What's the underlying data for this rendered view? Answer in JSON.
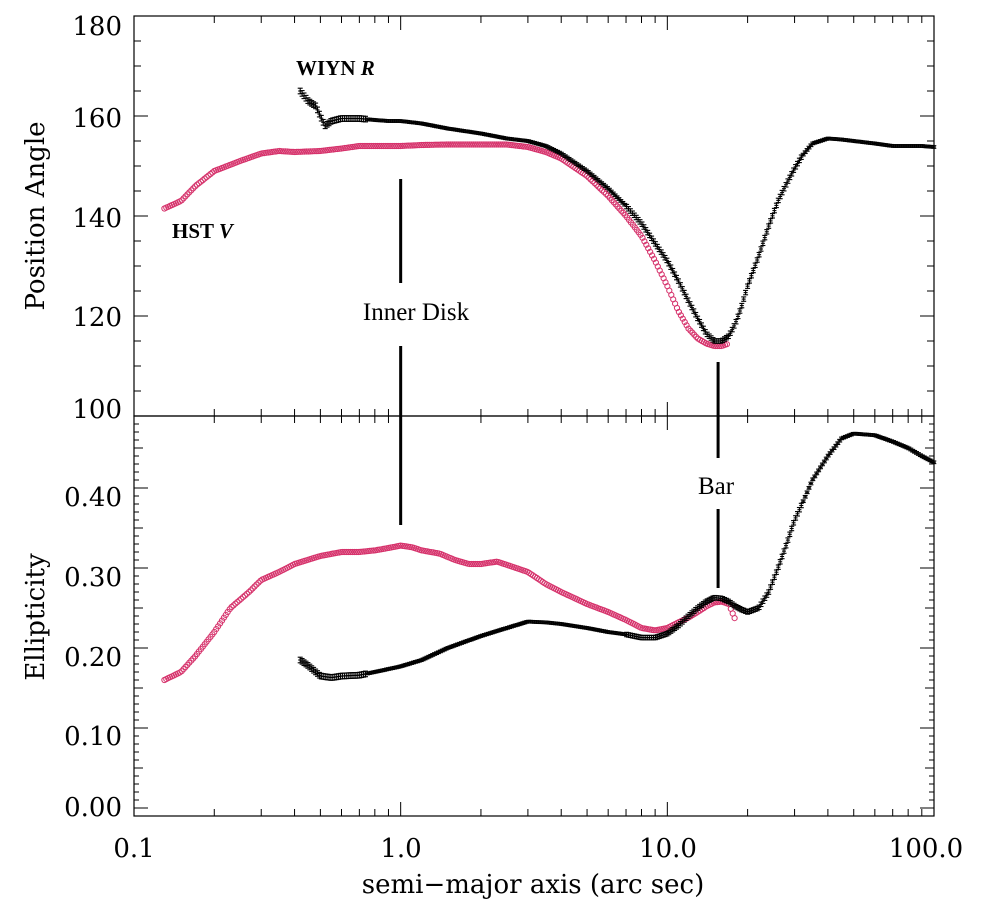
{
  "colors": {
    "hst": "#d6336c",
    "wiyn": "#000000",
    "axis": "#000000"
  },
  "chart_data": {
    "type": "scatter",
    "xlabel": "semi−major axis (arc sec)",
    "xscale": "log",
    "xlim": [
      0.1,
      100.0
    ],
    "xticks": [
      "0.1",
      "1.0",
      "10.0",
      "100.0"
    ],
    "top": {
      "ylabel": "Position Angle",
      "ylim": [
        100,
        180
      ],
      "yticks": [
        "100",
        "120",
        "140",
        "160",
        "180"
      ],
      "series": [
        {
          "name": "HST V",
          "label_main": "HST ",
          "label_it": "V",
          "marker": "circle",
          "x": [
            0.13,
            0.15,
            0.17,
            0.2,
            0.25,
            0.3,
            0.35,
            0.4,
            0.5,
            0.6,
            0.7,
            0.8,
            1.0,
            1.2,
            1.5,
            2.0,
            2.5,
            3.0,
            3.5,
            4.0,
            5.0,
            6.0,
            7.0,
            8.0,
            9.0,
            10.0,
            11.0,
            12.0,
            13.0,
            14.0,
            15.0,
            16.0,
            17.0
          ],
          "y": [
            141.5,
            143,
            146,
            149,
            151,
            152.5,
            153,
            152.8,
            153,
            153.5,
            154,
            154,
            154,
            154.2,
            154.3,
            154.3,
            154.3,
            153.8,
            152.8,
            151.5,
            148,
            144,
            140,
            136,
            131,
            126,
            121,
            117.5,
            115.5,
            114.5,
            114,
            114,
            114.5
          ]
        },
        {
          "name": "WIYN R",
          "label_main": "WIYN ",
          "label_it": "R",
          "marker": "error-bar",
          "x": [
            0.42,
            0.45,
            0.48,
            0.52,
            0.55,
            0.6,
            0.7,
            0.8,
            0.9,
            1.0,
            1.2,
            1.5,
            2.0,
            2.5,
            3.0,
            3.5,
            4.0,
            5.0,
            6.0,
            7.0,
            8.0,
            9.0,
            10.0,
            11.0,
            12.0,
            13.0,
            14.0,
            15.0,
            16.0,
            17.0,
            18.0,
            19.0,
            20.0,
            22.0,
            24.0,
            26.0,
            28.0,
            30.0,
            32.0,
            35.0,
            40.0,
            45.0,
            50.0,
            60.0,
            70.0,
            80.0,
            90.0,
            100.0
          ],
          "y": [
            165,
            163,
            162,
            158,
            159,
            159.5,
            159.5,
            159.2,
            159,
            159,
            158.5,
            157.5,
            156.5,
            155.5,
            155,
            154,
            152.5,
            149,
            145.5,
            142,
            138.5,
            134.5,
            131,
            127,
            123,
            119.5,
            116.5,
            115,
            115,
            116,
            118.5,
            122,
            126,
            132,
            138,
            143,
            146.5,
            149.5,
            152,
            154.5,
            155.5,
            155.3,
            155,
            154.5,
            154,
            154,
            154,
            153.8
          ]
        }
      ]
    },
    "bottom": {
      "ylabel": "Ellipticity",
      "ylim": [
        -0.01,
        0.49
      ],
      "yticks": [
        "0.00",
        "0.10",
        "0.20",
        "0.30",
        "0.40"
      ],
      "series": [
        {
          "name": "HST V",
          "marker": "circle",
          "x": [
            0.13,
            0.15,
            0.17,
            0.2,
            0.23,
            0.27,
            0.3,
            0.35,
            0.4,
            0.5,
            0.6,
            0.7,
            0.8,
            0.9,
            1.0,
            1.1,
            1.2,
            1.4,
            1.6,
            1.8,
            2.0,
            2.3,
            2.6,
            3.0,
            3.5,
            4.0,
            5.0,
            6.0,
            7.0,
            8.0,
            9.0,
            10.0,
            11.0,
            12.0,
            13.0,
            14.0,
            15.0,
            16.0,
            17.0,
            18.0
          ],
          "y": [
            0.16,
            0.17,
            0.19,
            0.22,
            0.25,
            0.27,
            0.285,
            0.295,
            0.305,
            0.315,
            0.32,
            0.32,
            0.322,
            0.325,
            0.328,
            0.326,
            0.322,
            0.318,
            0.31,
            0.305,
            0.305,
            0.308,
            0.302,
            0.295,
            0.28,
            0.27,
            0.255,
            0.245,
            0.235,
            0.225,
            0.222,
            0.225,
            0.232,
            0.238,
            0.245,
            0.252,
            0.257,
            0.258,
            0.255,
            0.235
          ]
        },
        {
          "name": "WIYN R",
          "marker": "error-bar",
          "x": [
            0.42,
            0.45,
            0.5,
            0.55,
            0.6,
            0.7,
            0.8,
            1.0,
            1.2,
            1.5,
            2.0,
            2.5,
            3.0,
            3.5,
            4.0,
            5.0,
            6.0,
            7.0,
            8.0,
            9.0,
            10.0,
            11.0,
            12.0,
            13.0,
            14.0,
            15.0,
            16.0,
            17.0,
            18.0,
            19.0,
            20.0,
            22.0,
            24.0,
            26.0,
            28.0,
            30.0,
            32.0,
            35.0,
            40.0,
            45.0,
            50.0,
            60.0,
            70.0,
            80.0,
            90.0,
            100.0
          ],
          "y": [
            0.185,
            0.178,
            0.165,
            0.163,
            0.165,
            0.166,
            0.17,
            0.177,
            0.185,
            0.2,
            0.215,
            0.225,
            0.233,
            0.232,
            0.23,
            0.225,
            0.22,
            0.217,
            0.213,
            0.213,
            0.218,
            0.228,
            0.24,
            0.25,
            0.258,
            0.263,
            0.262,
            0.258,
            0.252,
            0.248,
            0.245,
            0.25,
            0.27,
            0.3,
            0.33,
            0.36,
            0.38,
            0.41,
            0.44,
            0.462,
            0.468,
            0.466,
            0.458,
            0.45,
            0.44,
            0.432
          ]
        }
      ]
    },
    "annotations": [
      {
        "text": "Inner Disk",
        "x": 1.0
      },
      {
        "text": "Bar",
        "x": 15.5
      }
    ]
  }
}
